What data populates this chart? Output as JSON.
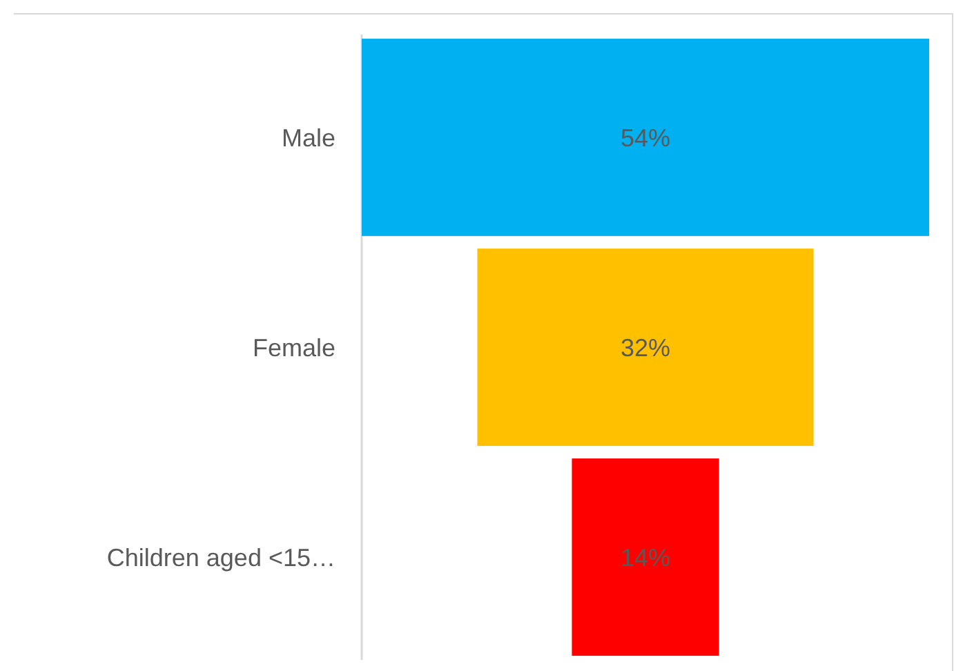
{
  "chart_data": {
    "type": "other",
    "categories": [
      "Male",
      "Female",
      "Children aged <15…"
    ],
    "values": [
      54,
      32,
      14
    ],
    "colors": [
      "#00b0f0",
      "#ffc000",
      "#ff0000"
    ],
    "value_labels": [
      "54%",
      "32%",
      "14%"
    ]
  }
}
